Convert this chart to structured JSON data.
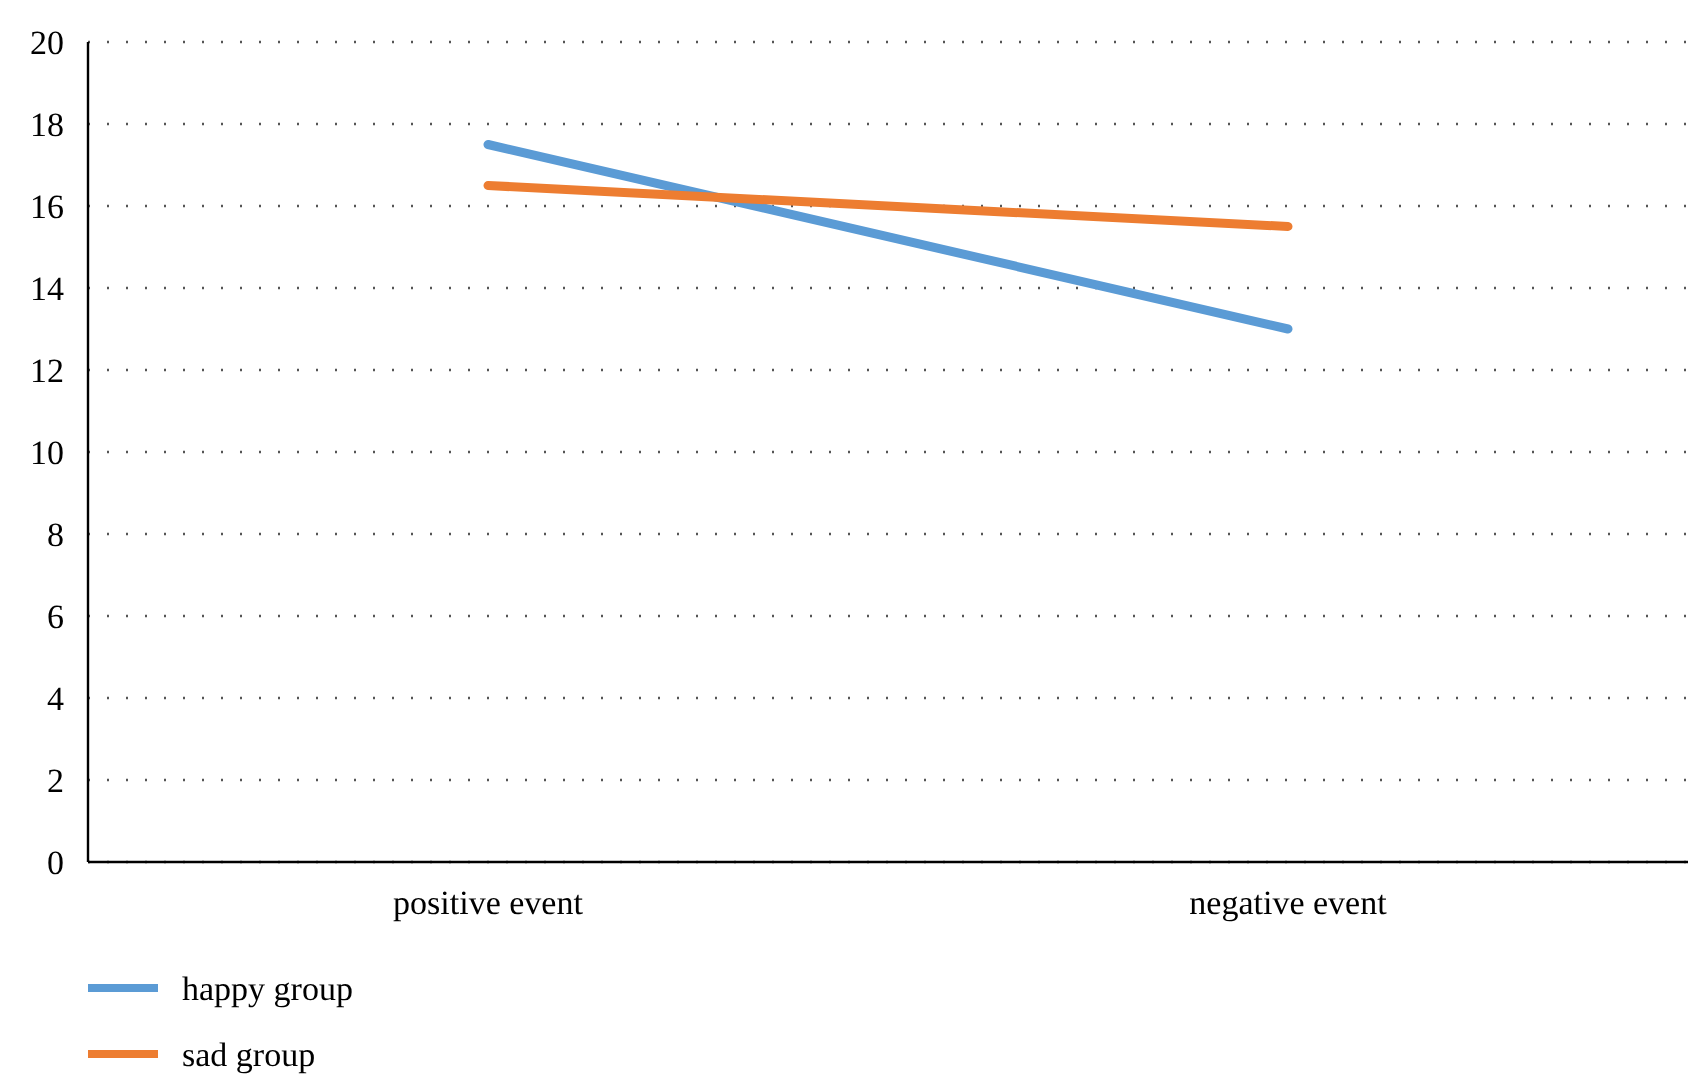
{
  "chart_data": {
    "type": "line",
    "categories": [
      "positive event",
      "negative event"
    ],
    "series": [
      {
        "name": "happy group",
        "color": "#5b9bd5",
        "values": [
          17.5,
          13
        ]
      },
      {
        "name": "sad group",
        "color": "#ed7d31",
        "values": [
          16.5,
          15.5
        ]
      }
    ],
    "ylim": [
      0,
      20
    ],
    "yticks": [
      0,
      2,
      4,
      6,
      8,
      10,
      12,
      14,
      16,
      18,
      20
    ],
    "grid": "y",
    "legend": "bottom left",
    "marker": "none",
    "line_style": "solid"
  }
}
